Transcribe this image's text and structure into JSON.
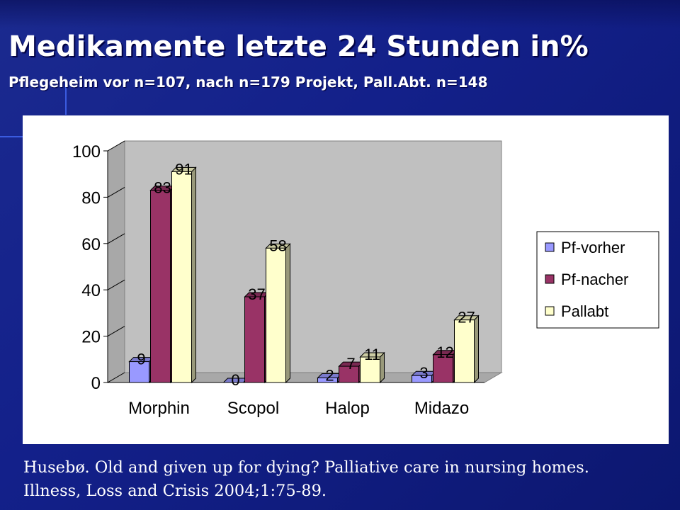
{
  "slide": {
    "title": "Medikamente letzte 24 Stunden in%",
    "subtitle": "Pflegeheim vor n=107, nach n=179 Projekt, Pall.Abt. n=148",
    "citation_line1": "Husebø. Old and given up for dying? Palliative care in nursing homes.",
    "citation_line2": "Illness, Loss and Crisis 2004;1:75-89."
  },
  "chart_data": {
    "type": "bar",
    "title": "",
    "xlabel": "",
    "ylabel": "",
    "categories": [
      "Morphin",
      "Scopol",
      "Halop",
      "Midazo"
    ],
    "series": [
      {
        "name": "Pf-vorher",
        "values": [
          9,
          0,
          2,
          3
        ],
        "color": "#9999ff"
      },
      {
        "name": "Pf-nacher",
        "values": [
          83,
          37,
          7,
          12
        ],
        "color": "#993366"
      },
      {
        "name": "Pallabt",
        "values": [
          91,
          58,
          11,
          27
        ],
        "color": "#ffffcc"
      }
    ],
    "ylim": [
      0,
      100
    ],
    "yticks": [
      0,
      20,
      40,
      60,
      80,
      100
    ],
    "style": "3d-clustered",
    "legend_position": "right",
    "grid": false,
    "data_labels": true,
    "wall_color": "#c0c0c0"
  }
}
